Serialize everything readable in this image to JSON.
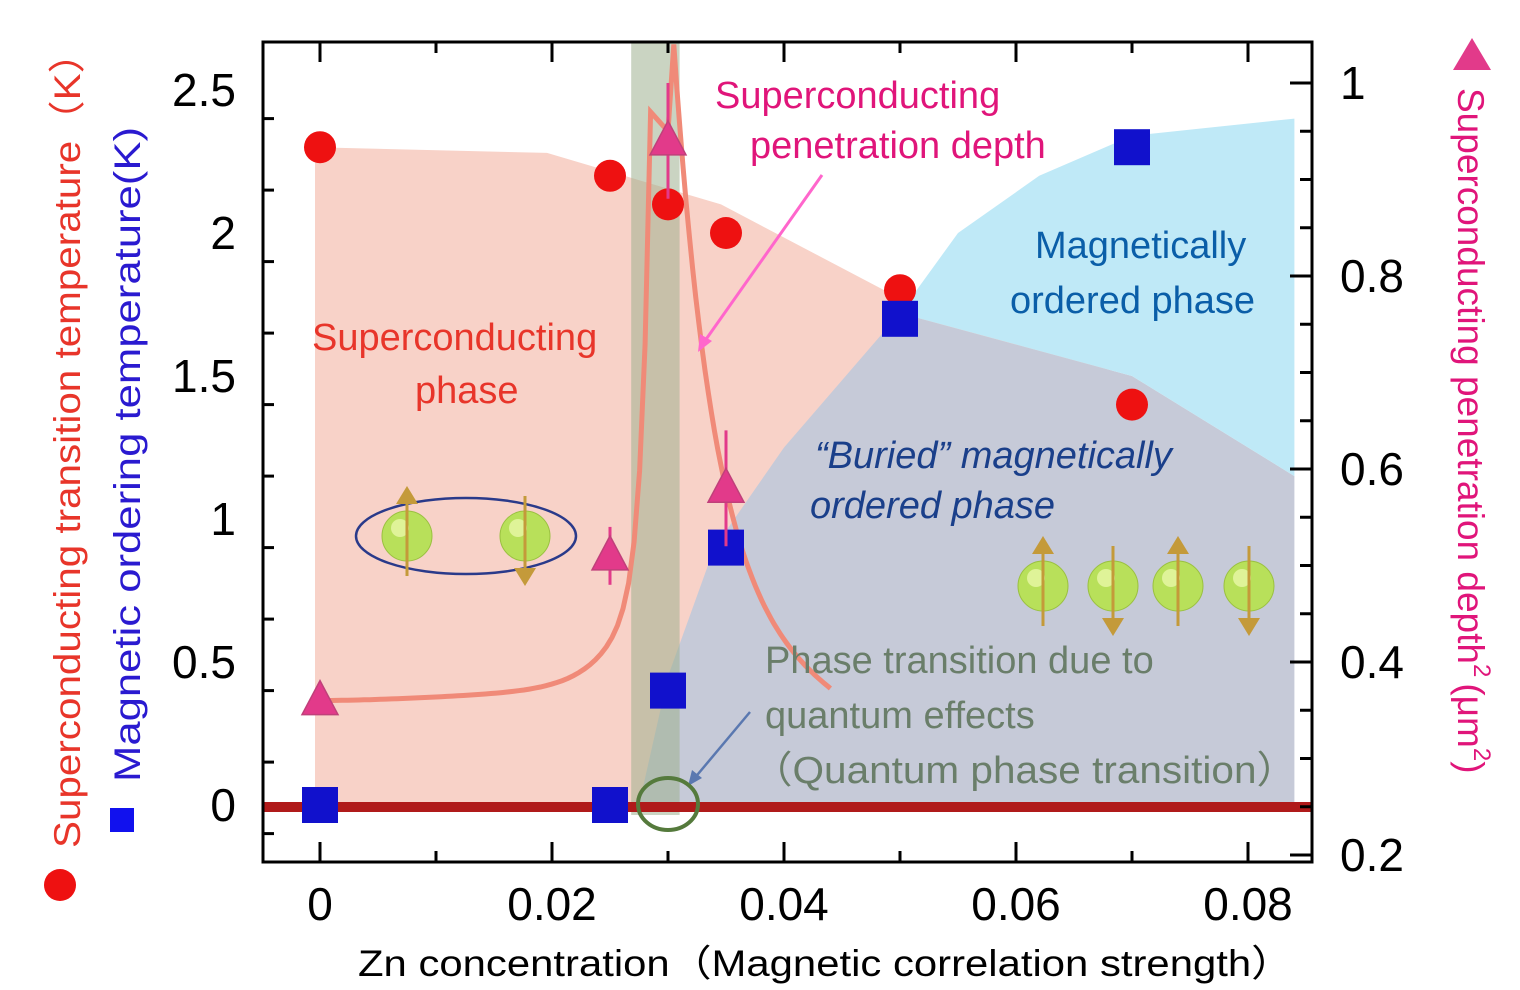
{
  "chart_data": {
    "type": "scatter",
    "xlabel": "Zn concentration（Magnetic correlation strength）",
    "ylabel_left_1": "Superconducting transition temperature（K）",
    "ylabel_left_2": "Magnetic ordering temperature(K)",
    "ylabel_right": "Superconducting penetration depth",
    "ylabel_right_exponent": "2",
    "ylabel_right_unit": "(μm",
    "ylabel_right_unit_exponent": "2",
    "ylabel_right_close": ")",
    "xlim": [
      -0.005,
      0.085
    ],
    "ylim_left": [
      -0.2,
      2.7
    ],
    "ylim_right": [
      0.2,
      1.0
    ],
    "x_ticks": [
      {
        "value": 0,
        "label": "0"
      },
      {
        "value": 0.02,
        "label": "0.02"
      },
      {
        "value": 0.04,
        "label": "0.04"
      },
      {
        "value": 0.06,
        "label": "0.06"
      },
      {
        "value": 0.08,
        "label": "0.08"
      }
    ],
    "y_left_ticks": [
      {
        "value": 0,
        "label": "0"
      },
      {
        "value": 0.5,
        "label": "0.5"
      },
      {
        "value": 1,
        "label": "1"
      },
      {
        "value": 1.5,
        "label": "1.5"
      },
      {
        "value": 2,
        "label": "2"
      },
      {
        "value": 2.5,
        "label": "2.5"
      }
    ],
    "y_right_ticks": [
      {
        "value": 0.2,
        "label": "0.2"
      },
      {
        "value": 0.4,
        "label": "0.4"
      },
      {
        "value": 0.6,
        "label": "0.6"
      },
      {
        "value": 0.8,
        "label": "0.8"
      },
      {
        "value": 1.0,
        "label": "1"
      }
    ],
    "series": [
      {
        "marker": "circle",
        "color": "#ee1111",
        "axis": "left",
        "x": [
          0,
          0.025,
          0.03,
          0.035,
          0.05,
          0.07
        ],
        "y": [
          2.3,
          2.2,
          2.1,
          2.0,
          1.8,
          1.4
        ]
      },
      {
        "marker": "square",
        "color": "#1111cc",
        "axis": "left",
        "x": [
          0,
          0.025,
          0.03,
          0.035,
          0.05,
          0.07
        ],
        "y": [
          0.0,
          0.0,
          0.4,
          0.9,
          1.7,
          2.3
        ]
      },
      {
        "marker": "triangle",
        "color": "#e23a8a",
        "axis": "right",
        "x": [
          0,
          0.025,
          0.03,
          0.035
        ],
        "y": [
          0.36,
          0.51,
          0.94,
          0.58
        ],
        "error": [
          0,
          0.03,
          0.06,
          0.06
        ]
      }
    ],
    "regions": {
      "superconducting_color": "#f8d2c8",
      "magnetic_color": "#bfe9f7",
      "buried_color": "#c6cad8",
      "transition_band_color": "#9fb08f",
      "transition_band_x": [
        0.027,
        0.031
      ]
    },
    "annotations": {
      "penetration_line1": "Superconducting",
      "penetration_line2": "penetration depth",
      "sc_phase_line1": "Superconducting",
      "sc_phase_line2": "phase",
      "mag_phase_line1": "Magnetically",
      "mag_phase_line2": "ordered  phase",
      "buried_line1": "“Buried” magnetically",
      "buried_line2": "ordered phase",
      "qpt_line1": "Phase transition due to",
      "qpt_line2": "quantum effects",
      "qpt_line3": "（Quantum phase transition）"
    },
    "colors": {
      "sc_text": "#e8352a",
      "penetration_text": "#e0157a",
      "mag_text": "#0a5ea8",
      "buried_text": "#1a3f8a",
      "qpt_text": "#6a7e6a",
      "peak_curve": "#f08a78",
      "baseline": "#b01a1a"
    }
  }
}
